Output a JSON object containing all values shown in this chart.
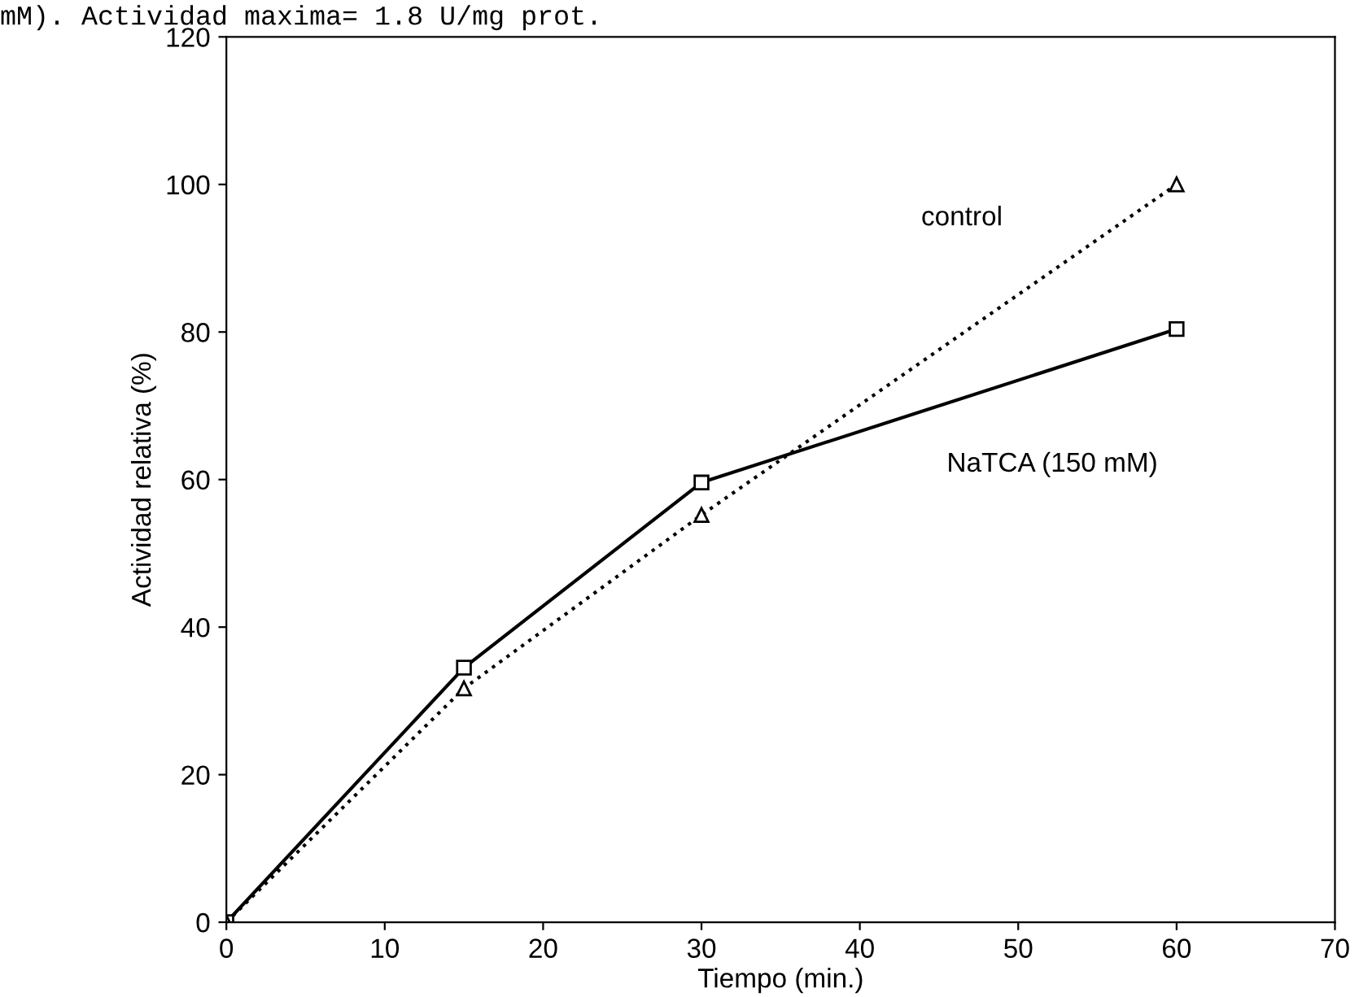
{
  "chart_data": {
    "type": "line",
    "title": "mM). Actividad maxima= 1.8 U/mg prot.",
    "xlabel": "Tiempo (min.)",
    "ylabel": "Actividad relativa (%)",
    "x": [
      0,
      15,
      30,
      60
    ],
    "series": [
      {
        "name": "NaTCA (150 mM)",
        "color": "#000000",
        "values": [
          0,
          34.5,
          59.6,
          80.4
        ],
        "marker": "square",
        "line_style": "solid"
      },
      {
        "name": "control",
        "color": "#000000",
        "values": [
          0,
          31.7,
          55.2,
          100
        ],
        "marker": "triangle",
        "line_style": "dotted"
      }
    ],
    "xlim": [
      0,
      70
    ],
    "ylim": [
      0,
      120
    ],
    "xticks": [
      0,
      10,
      20,
      30,
      40,
      50,
      60,
      70
    ],
    "yticks": [
      0,
      20,
      40,
      60,
      80,
      100,
      120
    ],
    "grid": false,
    "legend": false
  }
}
